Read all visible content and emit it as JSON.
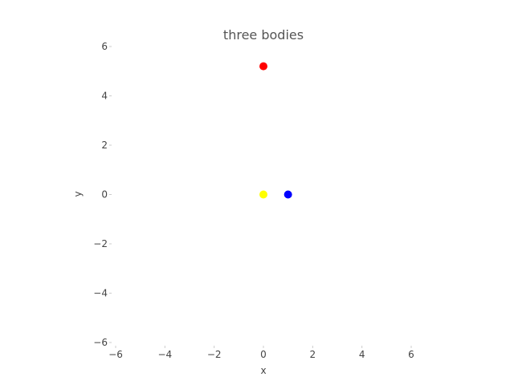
{
  "chart_data": {
    "type": "scatter",
    "title": "three bodies",
    "xlabel": "x",
    "ylabel": "y",
    "xlim": [
      -6,
      6
    ],
    "ylim": [
      -6,
      6
    ],
    "xticks": [
      -6,
      -4,
      -2,
      0,
      2,
      4,
      6
    ],
    "yticks": [
      -6,
      -4,
      -2,
      0,
      2,
      4,
      6
    ],
    "xtick_labels": [
      "−6",
      "−4",
      "−2",
      "0",
      "2",
      "4",
      "6"
    ],
    "ytick_labels": [
      "−6",
      "−4",
      "−2",
      "0",
      "2",
      "4",
      "6"
    ],
    "grid": false,
    "points": [
      {
        "x": 0,
        "y": 5.2,
        "color": "#ff0000"
      },
      {
        "x": 0,
        "y": 0,
        "color": "#ffff00"
      },
      {
        "x": 1,
        "y": 0,
        "color": "#0000ff"
      }
    ]
  }
}
